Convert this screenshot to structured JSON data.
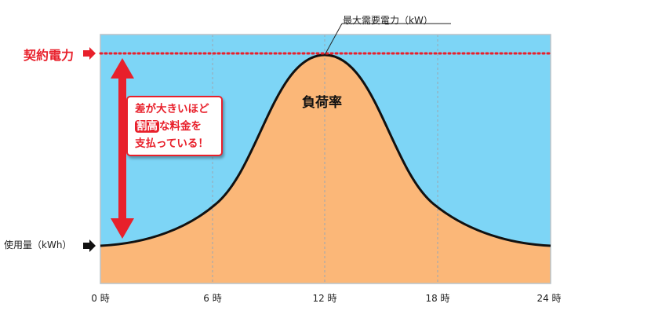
{
  "labels": {
    "contract_power": "契約電力",
    "usage": "使用量（kWh）",
    "peak_demand": "最大需要電力（kW）",
    "load_factor": "負荷率"
  },
  "callout": {
    "line1": "差が大きいほど",
    "highlight": "割高",
    "line2_rest": "な料金を",
    "line3": "支払っている！"
  },
  "x_ticks": [
    "0 時",
    "6 時",
    "12 時",
    "18 時",
    "24 時"
  ],
  "colors": {
    "sky": "#7dd5f6",
    "area": "#fbb778",
    "accent": "#e8202b",
    "curve": "#111111"
  },
  "icons": {
    "contract_arrow": "right-arrow-icon",
    "usage_arrow": "right-arrow-icon",
    "gap_arrow": "double-vertical-arrow-icon"
  }
}
